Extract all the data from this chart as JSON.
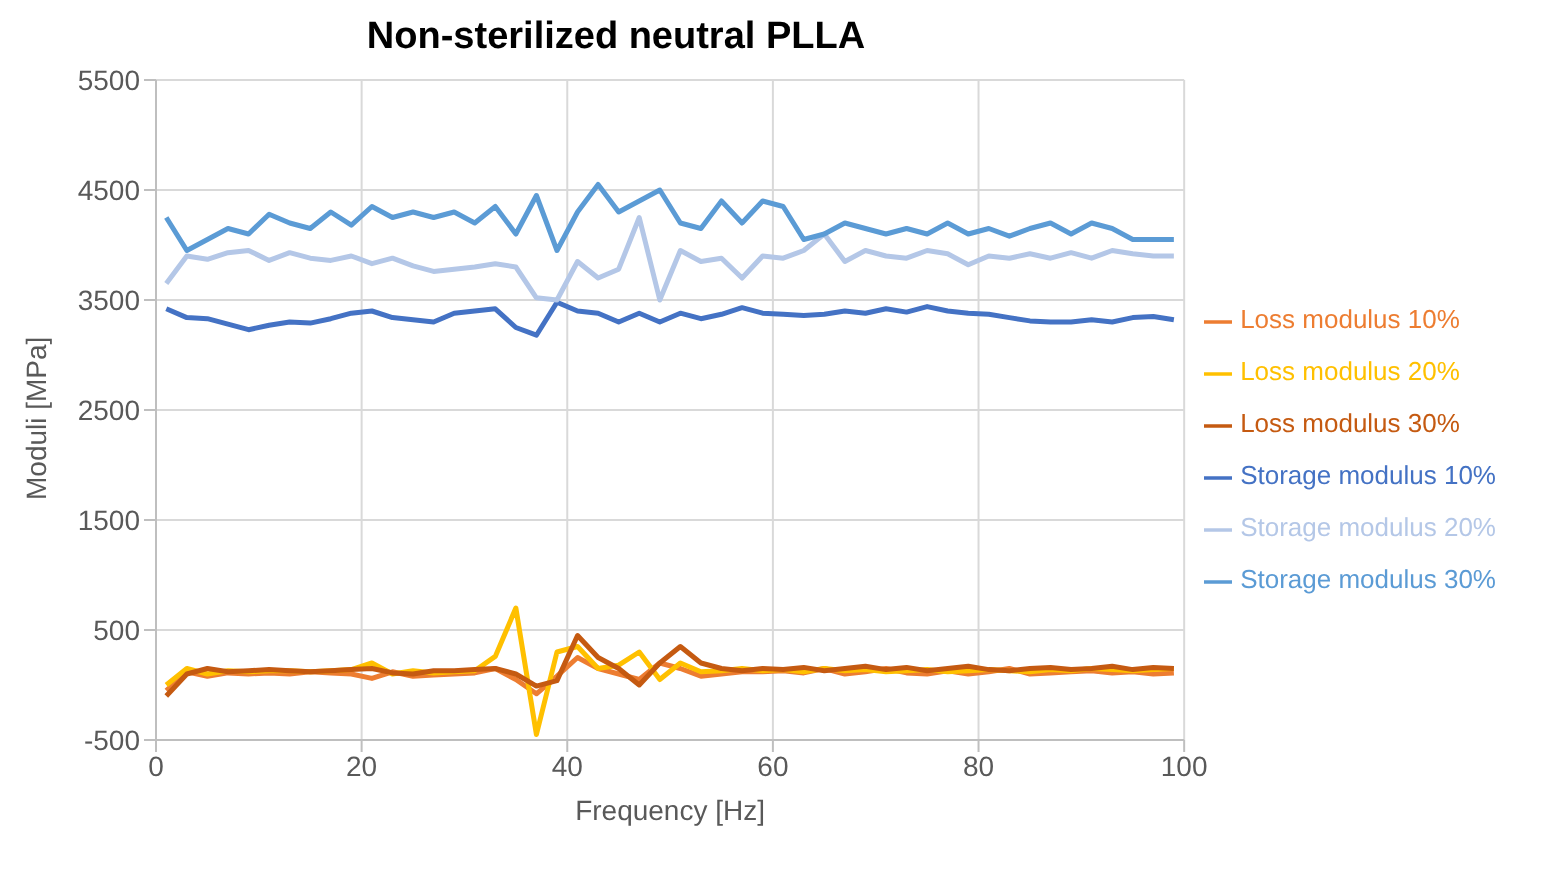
{
  "chart_data": {
    "type": "line",
    "title": "Non-sterilized neutral PLLA",
    "xlabel": "Frequency [Hz]",
    "ylabel": "Moduli [MPa]",
    "x": [
      1,
      3,
      5,
      7,
      9,
      11,
      13,
      15,
      17,
      19,
      21,
      23,
      25,
      27,
      29,
      31,
      33,
      35,
      37,
      39,
      41,
      43,
      45,
      47,
      49,
      51,
      53,
      55,
      57,
      59,
      61,
      63,
      65,
      67,
      69,
      71,
      73,
      75,
      77,
      79,
      81,
      83,
      85,
      87,
      89,
      91,
      93,
      95,
      97,
      99
    ],
    "series": [
      {
        "name": "Storage modulus 10%",
        "color": "#4472c4",
        "values": [
          3420,
          3340,
          3330,
          3280,
          3230,
          3270,
          3300,
          3290,
          3330,
          3380,
          3400,
          3340,
          3320,
          3300,
          3380,
          3400,
          3420,
          3250,
          3180,
          3480,
          3400,
          3380,
          3300,
          3380,
          3300,
          3380,
          3330,
          3370,
          3430,
          3380,
          3370,
          3360,
          3370,
          3400,
          3380,
          3420,
          3390,
          3440,
          3400,
          3380,
          3370,
          3340,
          3310,
          3300,
          3300,
          3320,
          3300,
          3340,
          3350,
          3320
        ]
      },
      {
        "name": "Loss modulus 10%",
        "color": "#ed7d31",
        "values": [
          -50,
          120,
          80,
          110,
          100,
          110,
          100,
          120,
          110,
          100,
          60,
          120,
          80,
          90,
          100,
          110,
          150,
          50,
          -80,
          80,
          250,
          150,
          100,
          50,
          200,
          150,
          80,
          100,
          120,
          120,
          130,
          110,
          150,
          100,
          120,
          150,
          110,
          100,
          130,
          100,
          120,
          150,
          100,
          110,
          120,
          130,
          110,
          120,
          100,
          110
        ]
      },
      {
        "name": "Storage modulus 20%",
        "color": "#b4c7e7",
        "values": [
          3650,
          3900,
          3870,
          3930,
          3950,
          3860,
          3930,
          3880,
          3860,
          3900,
          3830,
          3880,
          3810,
          3760,
          3780,
          3800,
          3830,
          3800,
          3520,
          3500,
          3850,
          3700,
          3780,
          4250,
          3500,
          3950,
          3850,
          3880,
          3700,
          3900,
          3880,
          3950,
          4100,
          3850,
          3950,
          3900,
          3880,
          3950,
          3920,
          3820,
          3900,
          3880,
          3920,
          3880,
          3930,
          3880,
          3950,
          3920,
          3900,
          3900
        ]
      },
      {
        "name": "Loss modulus 20%",
        "color": "#ffc000",
        "values": [
          0,
          150,
          100,
          130,
          120,
          130,
          130,
          120,
          130,
          140,
          200,
          100,
          130,
          110,
          120,
          130,
          260,
          700,
          -450,
          300,
          350,
          150,
          180,
          300,
          50,
          200,
          120,
          130,
          150,
          130,
          140,
          120,
          150,
          130,
          140,
          120,
          130,
          140,
          120,
          130,
          140,
          130,
          120,
          140,
          130,
          150,
          140,
          130,
          140,
          150
        ]
      },
      {
        "name": "Storage modulus 30%",
        "color": "#5b9bd5",
        "values": [
          4250,
          3950,
          4050,
          4150,
          4100,
          4280,
          4200,
          4150,
          4300,
          4180,
          4350,
          4250,
          4300,
          4250,
          4300,
          4200,
          4350,
          4100,
          4450,
          3950,
          4300,
          4550,
          4300,
          4400,
          4500,
          4200,
          4150,
          4400,
          4200,
          4400,
          4350,
          4050,
          4100,
          4200,
          4150,
          4100,
          4150,
          4100,
          4200,
          4100,
          4150,
          4080,
          4150,
          4200,
          4100,
          4200,
          4150,
          4050,
          4050,
          4050
        ]
      },
      {
        "name": "Loss modulus 30%",
        "color": "#c55a11",
        "values": [
          -100,
          100,
          150,
          120,
          130,
          140,
          130,
          120,
          130,
          140,
          150,
          110,
          100,
          130,
          130,
          140,
          150,
          100,
          -10,
          40,
          450,
          250,
          150,
          0,
          200,
          350,
          200,
          150,
          130,
          150,
          140,
          160,
          130,
          150,
          170,
          140,
          160,
          130,
          150,
          170,
          140,
          130,
          150,
          160,
          140,
          150,
          170,
          140,
          160,
          150
        ]
      }
    ],
    "xlim": [
      0,
      100
    ],
    "xticks": [
      0,
      20,
      40,
      60,
      80,
      100
    ],
    "ylim": [
      -500,
      5500
    ],
    "yticks": [
      -500,
      500,
      1500,
      2500,
      3500,
      4500,
      5500
    ],
    "grid": true,
    "legend": "right",
    "marker": "none",
    "line_style": "solid"
  }
}
